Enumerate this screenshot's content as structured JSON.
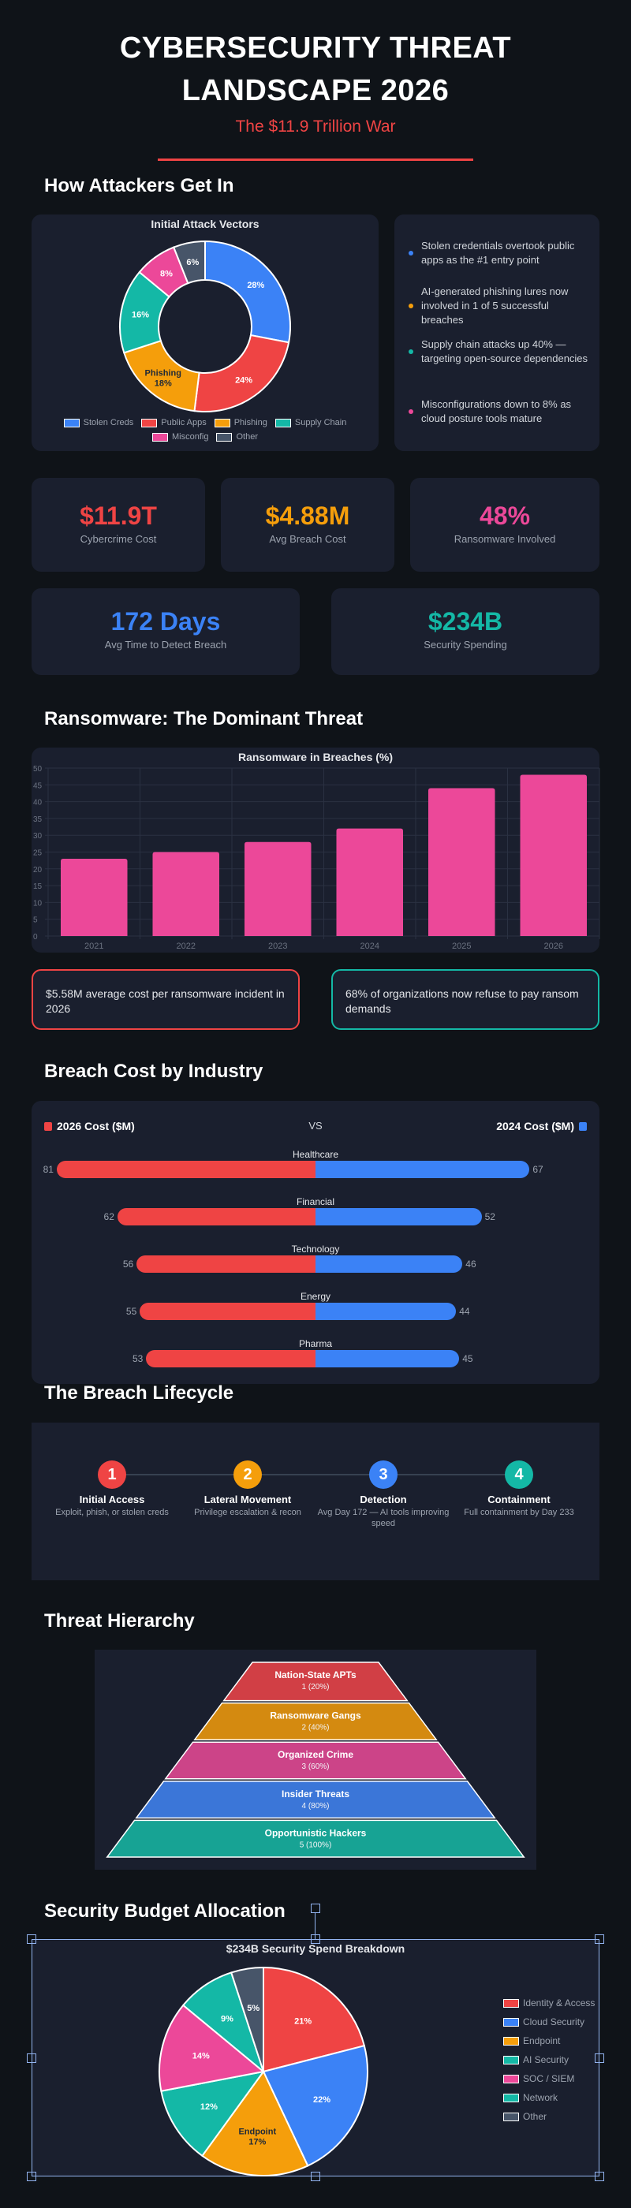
{
  "header": {
    "title_line1": "CYBERSECURITY THREAT",
    "title_line2": "LANDSCAPE 2026",
    "subtitle": "The $11.9 Trillion War"
  },
  "sections": {
    "attack": "How Attackers Get In",
    "ransomware": "Ransomware: The Dominant Threat",
    "industry": "Breach Cost by Industry",
    "lifecycle": "The Breach Lifecycle",
    "hierarchy": "Threat Hierarchy",
    "budget": "Security Budget Allocation"
  },
  "colors": {
    "background": "#0f1318",
    "card": "#1a1f2e",
    "red": "#ef4444",
    "orange": "#f59e0b",
    "pink": "#ec4899",
    "blue": "#3b82f6",
    "teal": "#14b8a6",
    "slate": "#475569"
  },
  "chart_data": [
    {
      "type": "pie",
      "variant": "donut",
      "title": "Initial Attack Vectors",
      "categories": [
        "Stolen Creds",
        "Public Apps",
        "Phishing",
        "Supply Chain",
        "Misconfig",
        "Other"
      ],
      "values": [
        28,
        24,
        18,
        16,
        8,
        6
      ],
      "unit": "%",
      "colors": [
        "#3b82f6",
        "#ef4444",
        "#f59e0b",
        "#14b8a6",
        "#ec4899",
        "#475569"
      ],
      "legend": "bottom"
    },
    {
      "type": "bar",
      "title": "Ransomware in Breaches (%)",
      "categories": [
        "2021",
        "2022",
        "2023",
        "2024",
        "2025",
        "2026"
      ],
      "values": [
        23,
        25,
        28,
        32,
        44,
        48
      ],
      "ylim": [
        0,
        50
      ],
      "yticks": [
        0,
        5,
        10,
        15,
        20,
        25,
        30,
        35,
        40,
        45,
        50
      ],
      "grid": true,
      "color": "#ec4899"
    },
    {
      "type": "bar",
      "variant": "butterfly",
      "legend_left": "2026 Cost ($M)",
      "legend_center": "VS",
      "legend_right": "2024 Cost ($M)",
      "categories": [
        "Healthcare",
        "Financial",
        "Technology",
        "Energy",
        "Pharma"
      ],
      "series": [
        {
          "name": "2026 Cost ($M)",
          "values": [
            81,
            62,
            56,
            55,
            53
          ],
          "color": "#ef4444"
        },
        {
          "name": "2024 Cost ($M)",
          "values": [
            67,
            52,
            46,
            44,
            45
          ],
          "color": "#3b82f6"
        }
      ]
    },
    {
      "type": "pyramid",
      "levels": [
        {
          "label": "Nation-State APTs",
          "value": "1 (20%)",
          "color": "#d13f45"
        },
        {
          "label": "Ransomware Gangs",
          "value": "2 (40%)",
          "color": "#d48a10"
        },
        {
          "label": "Organized Crime",
          "value": "3 (60%)",
          "color": "#cc4488"
        },
        {
          "label": "Insider Threats",
          "value": "4 (80%)",
          "color": "#3b76d8"
        },
        {
          "label": "Opportunistic Hackers",
          "value": "5 (100%)",
          "color": "#17a394"
        }
      ]
    },
    {
      "type": "pie",
      "title": "$234B Security Spend Breakdown",
      "categories": [
        "Identity & Access",
        "Cloud Security",
        "Endpoint",
        "AI Security",
        "SOC / SIEM",
        "Network",
        "Other"
      ],
      "values": [
        21,
        22,
        17,
        12,
        14,
        9,
        5
      ],
      "unit": "%",
      "colors": [
        "#ef4444",
        "#3b82f6",
        "#f59e0b",
        "#14b8a6",
        "#ec4899",
        "#14b8a6",
        "#475569"
      ],
      "legend": "right"
    }
  ],
  "insights": [
    {
      "text": "Stolen credentials overtook public apps as the #1 entry point",
      "color": "#3b82f6"
    },
    {
      "text": "AI-generated phishing lures now involved in 1 of 5 successful breaches",
      "color": "#f59e0b"
    },
    {
      "text": "Supply chain attacks up 40% — targeting open-source dependencies",
      "color": "#14b8a6"
    },
    {
      "text": "Misconfigurations down to 8% as cloud posture tools mature",
      "color": "#ec4899"
    }
  ],
  "stats": [
    {
      "value": "$11.9T",
      "label": "Cybercrime Cost",
      "color": "#ef4444"
    },
    {
      "value": "$4.88M",
      "label": "Avg Breach Cost",
      "color": "#f59e0b"
    },
    {
      "value": "48%",
      "label": "Ransomware Involved",
      "color": "#ec4899"
    },
    {
      "value": "172 Days",
      "label": "Avg Time to Detect Breach",
      "color": "#3b82f6"
    },
    {
      "value": "$234B",
      "label": "Security Spending",
      "color": "#14b8a6"
    }
  ],
  "callouts": [
    {
      "text": "$5.58M average cost per ransomware incident in 2026",
      "color": "#ef4444"
    },
    {
      "text": "68% of organizations now refuse to pay ransom demands",
      "color": "#14b8a6"
    }
  ],
  "lifecycle": [
    {
      "num": "1",
      "title": "Initial Access",
      "desc": "Exploit, phish, or stolen creds",
      "color": "#ef4444"
    },
    {
      "num": "2",
      "title": "Lateral Movement",
      "desc": "Privilege escalation & recon",
      "color": "#f59e0b"
    },
    {
      "num": "3",
      "title": "Detection",
      "desc": "Avg Day 172 — AI tools improving speed",
      "color": "#3b82f6"
    },
    {
      "num": "4",
      "title": "Containment",
      "desc": "Full containment by Day 233",
      "color": "#14b8a6"
    }
  ]
}
